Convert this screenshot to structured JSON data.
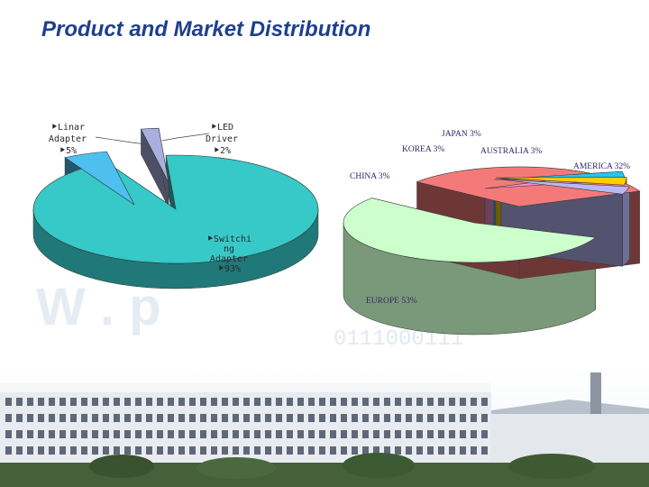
{
  "slide": {
    "title": "Product and Market Distribution",
    "watermark_binary": "0111000111"
  },
  "chart_data": [
    {
      "type": "pie",
      "slices": [
        {
          "name": "Switchi ng Adapter",
          "value": 93,
          "label_lines": [
            "⯈Switchi",
            "ng",
            "Adapter",
            "⯈93%"
          ],
          "color": "#37c8c8"
        },
        {
          "name": "Linar Adapter",
          "value": 5,
          "label_lines": [
            "⯈Linar",
            "Adapter",
            "⯈5%"
          ],
          "color": "#4ec0f0"
        },
        {
          "name": "LED Driver",
          "value": 2,
          "label_lines": [
            "⯈LED",
            "Driver",
            "⯈2%"
          ],
          "color": "#a8b0e0"
        }
      ]
    },
    {
      "type": "pie",
      "slices": [
        {
          "name": "EUROPE",
          "value": 53,
          "label": "EUROPE 53%",
          "color": "#ccffcc"
        },
        {
          "name": "AMERICA",
          "value": 32,
          "label": "AMERICA 32%",
          "color": "#f47a7a"
        },
        {
          "name": "CHINA",
          "value": 3,
          "label": "CHINA 3%",
          "color": "#f090d0"
        },
        {
          "name": "KOREA",
          "value": 3,
          "label": "KOREA 3%",
          "color": "#22c8ee"
        },
        {
          "name": "JAPAN",
          "value": 3,
          "label": "JAPAN 3%",
          "color": "#ffcc00"
        },
        {
          "name": "AUSTRALIA",
          "value": 3,
          "label": "AUSTRALIA 3%",
          "color": "#b8b8f8"
        }
      ]
    }
  ]
}
